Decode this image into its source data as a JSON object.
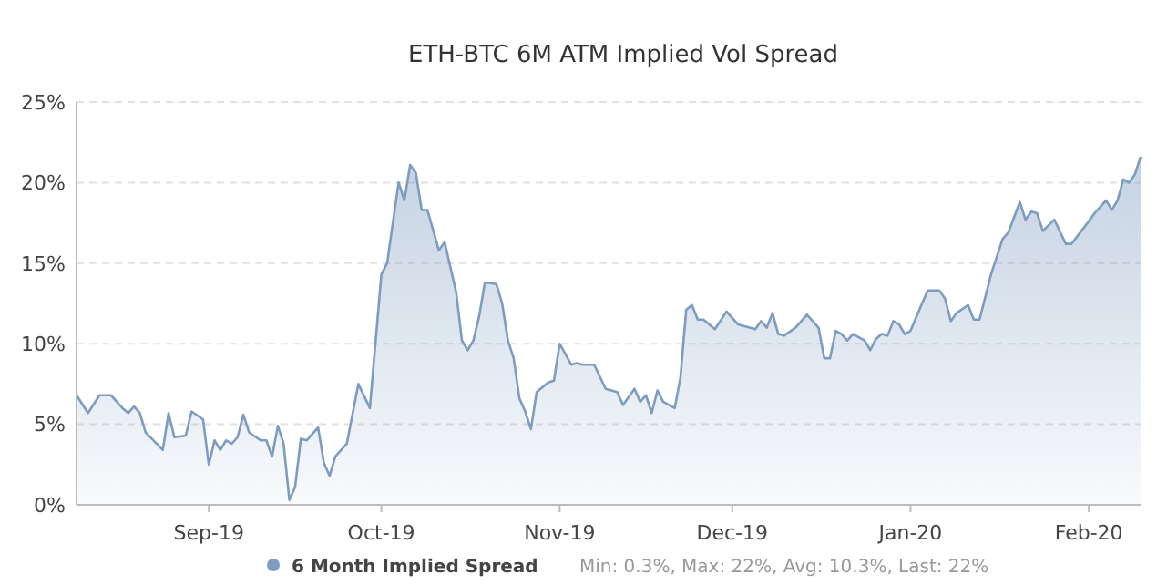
{
  "chart_data": {
    "type": "area",
    "title": "ETH-BTC 6M ATM Implied Vol Spread",
    "x": [
      "2019-08-09",
      "2019-08-11",
      "2019-08-13",
      "2019-08-15",
      "2019-08-17",
      "2019-08-18",
      "2019-08-19",
      "2019-08-20",
      "2019-08-21",
      "2019-08-24",
      "2019-08-25",
      "2019-08-26",
      "2019-08-28",
      "2019-08-29",
      "2019-08-31",
      "2019-09-01",
      "2019-09-02",
      "2019-09-03",
      "2019-09-04",
      "2019-09-05",
      "2019-09-06",
      "2019-09-07",
      "2019-09-08",
      "2019-09-10",
      "2019-09-11",
      "2019-09-12",
      "2019-09-13",
      "2019-09-14",
      "2019-09-15",
      "2019-09-16",
      "2019-09-17",
      "2019-09-18",
      "2019-09-20",
      "2019-09-21",
      "2019-09-22",
      "2019-09-23",
      "2019-09-25",
      "2019-09-27",
      "2019-09-29",
      "2019-10-01",
      "2019-10-02",
      "2019-10-04",
      "2019-10-05",
      "2019-10-06",
      "2019-10-07",
      "2019-10-08",
      "2019-10-09",
      "2019-10-11",
      "2019-10-12",
      "2019-10-14",
      "2019-10-15",
      "2019-10-16",
      "2019-10-17",
      "2019-10-18",
      "2019-10-19",
      "2019-10-21",
      "2019-10-22",
      "2019-10-23",
      "2019-10-24",
      "2019-10-25",
      "2019-10-26",
      "2019-10-27",
      "2019-10-28",
      "2019-10-30",
      "2019-10-31",
      "2019-11-01",
      "2019-11-03",
      "2019-11-04",
      "2019-11-05",
      "2019-11-07",
      "2019-11-09",
      "2019-11-11",
      "2019-11-12",
      "2019-11-14",
      "2019-11-15",
      "2019-11-16",
      "2019-11-17",
      "2019-11-18",
      "2019-11-19",
      "2019-11-21",
      "2019-11-22",
      "2019-11-23",
      "2019-11-24",
      "2019-11-25",
      "2019-11-26",
      "2019-11-28",
      "2019-11-30",
      "2019-12-02",
      "2019-12-04",
      "2019-12-05",
      "2019-12-06",
      "2019-12-07",
      "2019-12-08",
      "2019-12-09",
      "2019-12-10",
      "2019-12-12",
      "2019-12-14",
      "2019-12-16",
      "2019-12-17",
      "2019-12-18",
      "2019-12-19",
      "2019-12-20",
      "2019-12-21",
      "2019-12-22",
      "2019-12-24",
      "2019-12-25",
      "2019-12-26",
      "2019-12-27",
      "2019-12-28",
      "2019-12-29",
      "2019-12-30",
      "2019-12-31",
      "2020-01-01",
      "2020-01-03",
      "2020-01-04",
      "2020-01-06",
      "2020-01-07",
      "2020-01-08",
      "2020-01-09",
      "2020-01-11",
      "2020-01-12",
      "2020-01-13",
      "2020-01-15",
      "2020-01-17",
      "2020-01-18",
      "2020-01-20",
      "2020-01-21",
      "2020-01-22",
      "2020-01-23",
      "2020-01-24",
      "2020-01-26",
      "2020-01-28",
      "2020-01-29",
      "2020-02-01",
      "2020-02-02",
      "2020-02-04",
      "2020-02-05",
      "2020-02-06",
      "2020-02-07",
      "2020-02-08",
      "2020-02-09",
      "2020-02-10"
    ],
    "series": [
      {
        "name": "6 Month Implied Spread",
        "color": "#7d9cc0",
        "values": [
          6.8,
          5.7,
          6.8,
          6.8,
          6.0,
          5.7,
          6.1,
          5.7,
          4.5,
          3.4,
          5.7,
          4.2,
          4.3,
          5.8,
          5.3,
          2.5,
          4.0,
          3.4,
          4.0,
          3.8,
          4.2,
          5.6,
          4.5,
          4.0,
          4.0,
          3.0,
          4.9,
          3.8,
          0.3,
          1.1,
          4.1,
          4.0,
          4.8,
          2.6,
          1.8,
          3.0,
          3.8,
          7.5,
          6.0,
          14.3,
          15.0,
          20.0,
          18.9,
          21.1,
          20.6,
          18.3,
          18.3,
          15.8,
          16.3,
          13.2,
          10.2,
          9.6,
          10.2,
          11.7,
          13.8,
          13.7,
          12.5,
          10.2,
          9.1,
          6.6,
          5.8,
          4.7,
          7.0,
          7.6,
          7.7,
          10.0,
          8.7,
          8.8,
          8.7,
          8.7,
          7.2,
          7.0,
          6.2,
          7.2,
          6.4,
          6.8,
          5.7,
          7.1,
          6.4,
          6.0,
          7.9,
          12.1,
          12.4,
          11.5,
          11.5,
          10.9,
          12.0,
          11.2,
          11.0,
          10.9,
          11.4,
          11.0,
          11.9,
          10.6,
          10.5,
          11.0,
          11.8,
          11.0,
          9.1,
          9.1,
          10.8,
          10.6,
          10.2,
          10.6,
          10.2,
          9.6,
          10.3,
          10.6,
          10.5,
          11.4,
          11.2,
          10.6,
          10.8,
          12.5,
          13.3,
          13.3,
          12.8,
          11.4,
          11.9,
          12.4,
          11.5,
          11.5,
          14.3,
          16.5,
          16.9,
          18.8,
          17.7,
          18.2,
          18.1,
          17.0,
          17.7,
          16.2,
          16.2,
          17.6,
          18.1,
          18.9,
          18.3,
          18.9,
          20.2,
          20.0,
          20.5,
          21.6
        ]
      }
    ],
    "xlim": [
      "2019-08-09",
      "2020-02-10"
    ],
    "xticks": [
      {
        "value": "2019-09-01",
        "label": "Sep-19"
      },
      {
        "value": "2019-10-01",
        "label": "Oct-19"
      },
      {
        "value": "2019-11-01",
        "label": "Nov-19"
      },
      {
        "value": "2019-12-01",
        "label": "Dec-19"
      },
      {
        "value": "2020-01-01",
        "label": "Jan-20"
      },
      {
        "value": "2020-02-01",
        "label": "Feb-20"
      }
    ],
    "ylim": [
      0,
      25
    ],
    "yticks": [
      {
        "value": 0,
        "label": "0%"
      },
      {
        "value": 5,
        "label": "5%"
      },
      {
        "value": 10,
        "label": "10%"
      },
      {
        "value": 15,
        "label": "15%"
      },
      {
        "value": 20,
        "label": "20%"
      },
      {
        "value": 25,
        "label": "25%"
      }
    ],
    "grid": "y",
    "legend": "bottom",
    "annotations": [
      "Min: 0.3%, Max: 22%, Avg: 10.3%, Last: 22%"
    ]
  }
}
